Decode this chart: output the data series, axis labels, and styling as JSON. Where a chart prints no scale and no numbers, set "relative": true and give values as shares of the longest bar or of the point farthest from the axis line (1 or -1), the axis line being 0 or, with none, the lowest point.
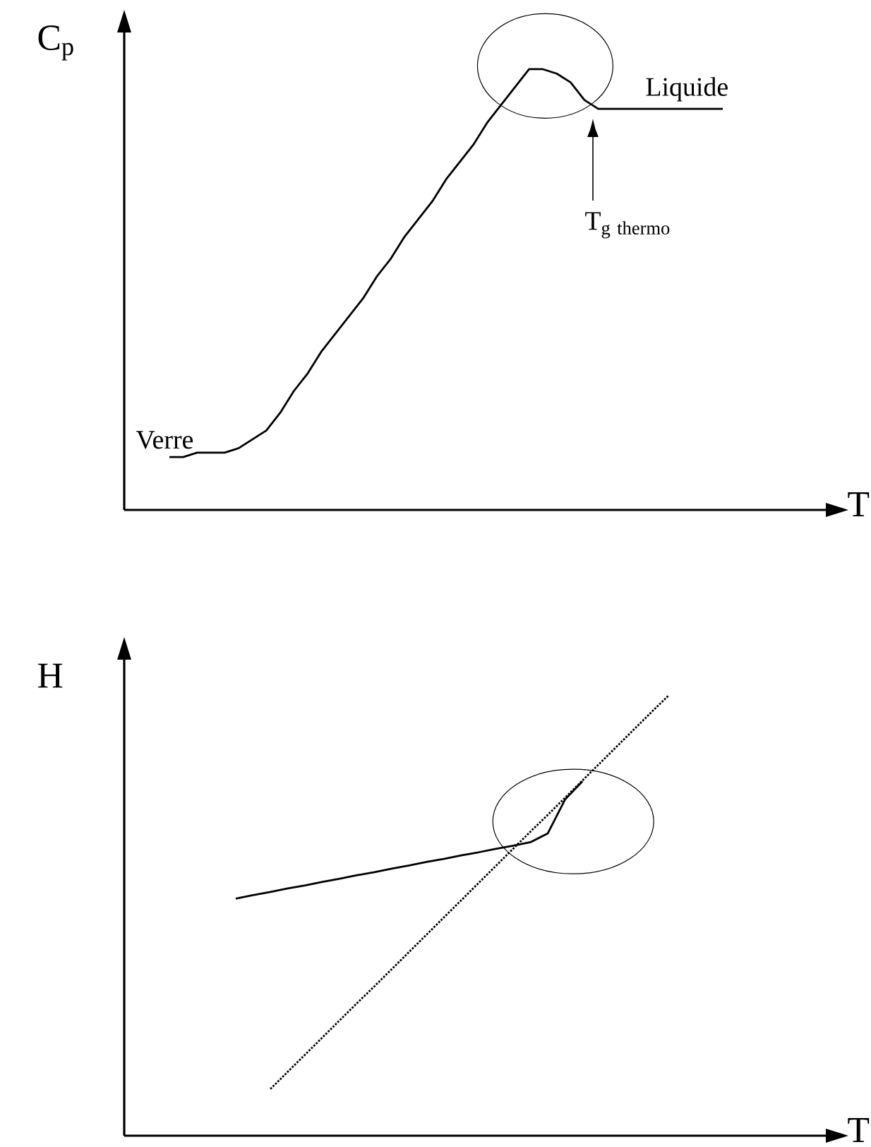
{
  "chart_data": [
    {
      "type": "line",
      "relative": true,
      "ylabel": "C$_{p}$",
      "xlabel": "T",
      "marker": "none",
      "categories": [
        null,
        null,
        null,
        null,
        null,
        null,
        null,
        null,
        null,
        null,
        null,
        null,
        null,
        null,
        null,
        null,
        null,
        null,
        null,
        null,
        null,
        null,
        null,
        null,
        null,
        null,
        null,
        null,
        null,
        null,
        null,
        null,
        null,
        null,
        null,
        null,
        null,
        null,
        null,
        null,
        null
      ],
      "series": [
        {
          "color": "#000000",
          "line_style": "solid",
          "values": [
            0.12,
            0.12,
            0.13,
            0.13,
            0.13,
            0.14,
            0.16,
            0.18,
            0.22,
            0.27,
            0.31,
            0.36,
            0.4,
            0.44,
            0.48,
            0.53,
            0.57,
            0.62,
            0.66,
            0.7,
            0.75,
            0.79,
            0.83,
            0.88,
            0.92,
            0.96,
            1.0,
            1.0,
            0.99,
            0.97,
            0.93,
            0.91,
            0.91,
            0.91,
            0.91,
            0.91,
            0.91,
            0.91,
            0.91,
            0.91,
            0.91
          ]
        }
      ],
      "annotations": [
        "Verre",
        "Liquide",
        "\\mathrm{T}_{\\mathrm{g\\ thermo}}"
      ]
    },
    {
      "type": "line",
      "relative": true,
      "ylabel": "H",
      "xlabel": "T",
      "marker": "none",
      "categories": [
        null,
        null,
        null,
        null,
        null,
        null,
        null,
        null,
        null,
        null,
        null,
        null,
        null,
        null,
        null,
        null,
        null,
        null,
        null,
        null,
        null,
        null,
        null,
        null,
        null,
        null
      ],
      "series": [
        {
          "color": "#000000",
          "line_style": "solid",
          "values": [
            0.538,
            0.546,
            0.553,
            0.561,
            0.568,
            0.576,
            0.583,
            0.591,
            0.598,
            0.606,
            0.613,
            0.621,
            0.628,
            0.636,
            0.643,
            0.651,
            0.658,
            0.666,
            0.686,
            0.763,
            0.804,
            null,
            null,
            null,
            null,
            null
          ]
        },
        {
          "color": "#000000",
          "line_style": "dotted",
          "values": [
            null,
            null,
            0.106,
            0.145,
            0.184,
            0.223,
            0.262,
            0.301,
            0.339,
            0.378,
            0.417,
            0.456,
            0.495,
            0.534,
            0.573,
            0.612,
            0.651,
            0.69,
            0.728,
            0.767,
            0.806,
            0.845,
            0.884,
            0.923,
            0.962,
            1.0
          ]
        }
      ]
    }
  ]
}
